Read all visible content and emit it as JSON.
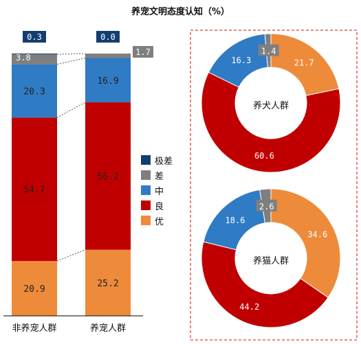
{
  "title": "养宠文明态度认知（%）",
  "colors": {
    "excellent": "#ed8b3b",
    "good": "#c00000",
    "medium": "#2f7bc4",
    "poor": "#7f7f7f",
    "very_poor": "#123e70",
    "frame": "#e03c3c"
  },
  "legend": [
    {
      "label": "极差",
      "color": "#123e70"
    },
    {
      "label": "差",
      "color": "#7f7f7f"
    },
    {
      "label": "中",
      "color": "#2f7bc4"
    },
    {
      "label": "良",
      "color": "#c00000"
    },
    {
      "label": "优",
      "color": "#ed8b3b"
    }
  ],
  "chart_data": [
    {
      "type": "bar",
      "stacked": true,
      "categories": [
        "非养宠人群",
        "养宠人群"
      ],
      "series": [
        {
          "name": "优",
          "values": [
            20.9,
            25.2
          ]
        },
        {
          "name": "良",
          "values": [
            54.7,
            56.2
          ]
        },
        {
          "name": "中",
          "values": [
            20.3,
            16.9
          ]
        },
        {
          "name": "差",
          "values": [
            3.8,
            1.7
          ]
        },
        {
          "name": "极差",
          "values": [
            0.3,
            0.0
          ]
        }
      ],
      "ylim": [
        0,
        100
      ],
      "legend_position": "right"
    },
    {
      "type": "pie",
      "donut": true,
      "center_label": "养犬人群",
      "labels": [
        "优",
        "良",
        "中",
        "差"
      ],
      "values": [
        21.7,
        60.6,
        16.3,
        1.4
      ]
    },
    {
      "type": "pie",
      "donut": true,
      "center_label": "养猫人群",
      "labels": [
        "优",
        "良",
        "中",
        "差"
      ],
      "values": [
        34.6,
        44.2,
        18.6,
        2.6
      ]
    }
  ]
}
